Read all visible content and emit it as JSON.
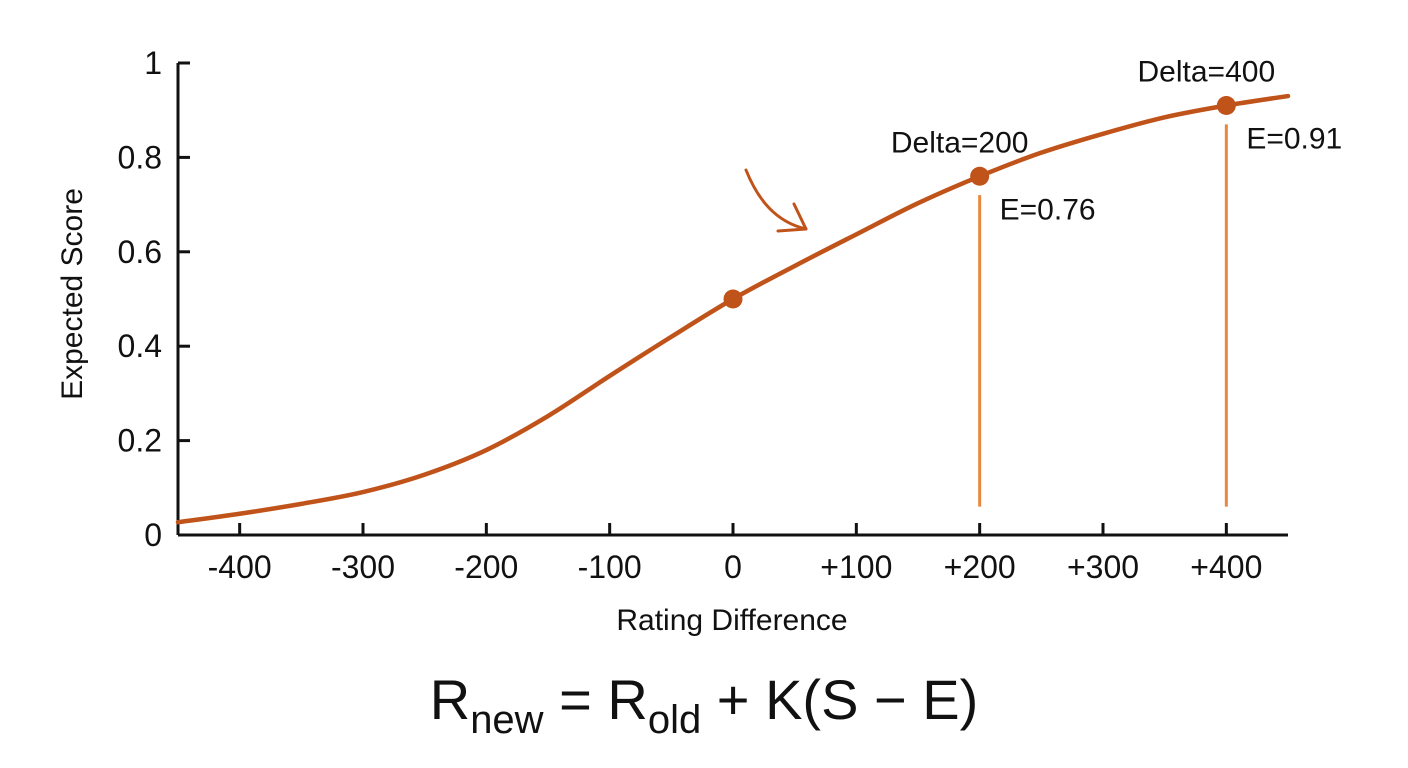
{
  "colors": {
    "curve": "#C0531A",
    "drop_line": "#E8873E",
    "axis": "#111111",
    "text": "#111111"
  },
  "formula": {
    "r": "R",
    "new_sub": "new",
    "equals": " = ",
    "old_sub": "old",
    "rest": " + K(S − E)"
  },
  "chart_data": {
    "type": "line",
    "title": "",
    "xlabel": "Rating Difference",
    "ylabel": "Expected Score",
    "xlim": [
      -450,
      450
    ],
    "ylim": [
      0,
      1
    ],
    "x_ticks": [
      {
        "value": -400,
        "label": "-400"
      },
      {
        "value": -300,
        "label": "-300"
      },
      {
        "value": -200,
        "label": "-200"
      },
      {
        "value": -100,
        "label": "-100"
      },
      {
        "value": 0,
        "label": "0"
      },
      {
        "value": 100,
        "label": "+100"
      },
      {
        "value": 200,
        "label": "+200"
      },
      {
        "value": 300,
        "label": "+300"
      },
      {
        "value": 400,
        "label": "+400"
      }
    ],
    "y_ticks": [
      {
        "value": 0,
        "label": "0"
      },
      {
        "value": 0.2,
        "label": "0.2"
      },
      {
        "value": 0.4,
        "label": "0.4"
      },
      {
        "value": 0.6,
        "label": "0.6"
      },
      {
        "value": 0.8,
        "label": "0.8"
      },
      {
        "value": 1,
        "label": "1"
      }
    ],
    "grid": false,
    "legend": "none",
    "series": [
      {
        "x": [
          -450,
          -400,
          -350,
          -300,
          -250,
          -200,
          -150,
          -100,
          -50,
          0,
          50,
          100,
          150,
          200,
          250,
          300,
          350,
          400,
          450
        ],
        "y": [
          0.027,
          0.045,
          0.066,
          0.091,
          0.128,
          0.18,
          0.252,
          0.337,
          0.42,
          0.5,
          0.57,
          0.637,
          0.703,
          0.76,
          0.81,
          0.85,
          0.885,
          0.91,
          0.93
        ]
      }
    ],
    "highlight_points": [
      {
        "x": 0,
        "y": 0.5
      },
      {
        "x": 200,
        "y": 0.76,
        "label": "Delta=200",
        "value_label": "E=0.76"
      },
      {
        "x": 400,
        "y": 0.91,
        "label": "Delta=400",
        "value_label": "E=0.91"
      }
    ],
    "drop_lines": [
      {
        "x": 200,
        "y_from": 0.06,
        "y_to": 0.72
      },
      {
        "x": 400,
        "y_from": 0.06,
        "y_to": 0.87
      }
    ]
  }
}
